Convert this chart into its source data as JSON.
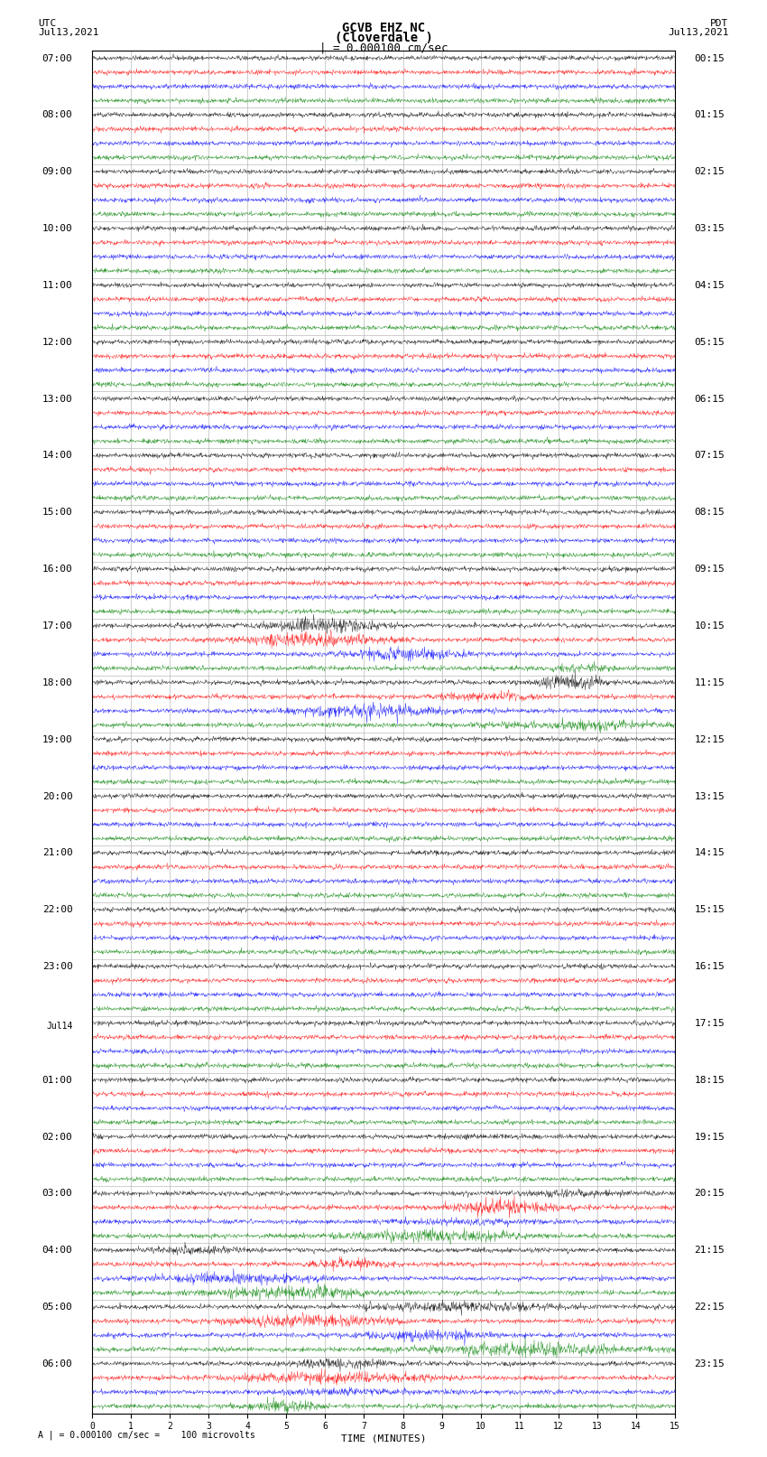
{
  "title_line1": "GCVB EHZ NC",
  "title_line2": "(Cloverdale )",
  "title_line3": "| = 0.000100 cm/sec",
  "left_label_top": "UTC",
  "left_label_date": "Jul13,2021",
  "right_label_top": "PDT",
  "right_label_date": "Jul13,2021",
  "xlabel": "TIME (MINUTES)",
  "bottom_note": "A | = 0.000100 cm/sec =    100 microvolts",
  "xlim": [
    0,
    15
  ],
  "xticks": [
    0,
    1,
    2,
    3,
    4,
    5,
    6,
    7,
    8,
    9,
    10,
    11,
    12,
    13,
    14,
    15
  ],
  "background_color": "#ffffff",
  "trace_colors": [
    "black",
    "red",
    "blue",
    "green"
  ],
  "line_color": "#aaaaaa",
  "utc_times": [
    "07:00",
    "08:00",
    "09:00",
    "10:00",
    "11:00",
    "12:00",
    "13:00",
    "14:00",
    "15:00",
    "16:00",
    "17:00",
    "18:00",
    "19:00",
    "20:00",
    "21:00",
    "22:00",
    "23:00",
    "Jul14",
    "01:00",
    "02:00",
    "03:00",
    "04:00",
    "05:00",
    "06:00"
  ],
  "pdt_times": [
    "00:15",
    "01:15",
    "02:15",
    "03:15",
    "04:15",
    "05:15",
    "06:15",
    "07:15",
    "08:15",
    "09:15",
    "10:15",
    "11:15",
    "12:15",
    "13:15",
    "14:15",
    "15:15",
    "16:15",
    "17:15",
    "18:15",
    "19:15",
    "20:15",
    "21:15",
    "22:15",
    "23:15"
  ],
  "n_rows": 24,
  "n_traces_per_row": 4,
  "noise_base": 0.08,
  "noise_seed": 42,
  "fig_width": 8.5,
  "fig_height": 16.13,
  "title_fontsize": 10,
  "label_fontsize": 8,
  "tick_fontsize": 7,
  "time_label_fontsize": 8
}
